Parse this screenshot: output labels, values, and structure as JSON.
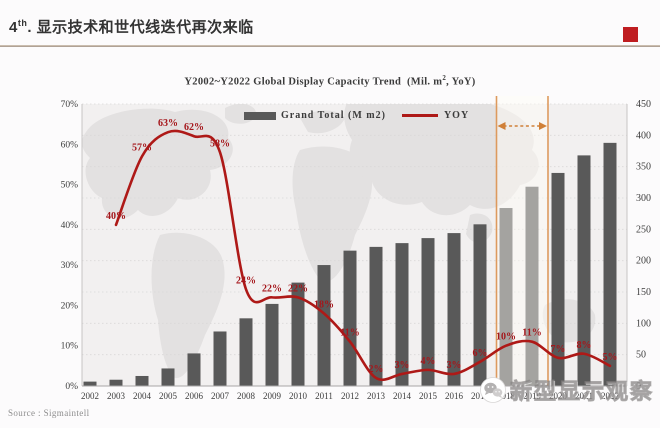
{
  "slide": {
    "title": {
      "number": "4",
      "superscript": "th",
      "text": ". 显示技术和世代线迭代再次来临"
    }
  },
  "chart": {
    "title": {
      "main": "Y2002~Y2022 Global Display Capacity Trend",
      "unit_pre": "(Mil. m",
      "unit_sup": "2",
      "unit_post": ", YoY)"
    },
    "legend": {
      "bar_label": "Grand Total (M m2)",
      "line_label": "YOY"
    }
  },
  "chart_data": {
    "type": "bar+line",
    "title": "Y2002~Y2022 Global Display Capacity Trend (Mil. m2, YoY)",
    "categories": [
      "2002",
      "2003",
      "2004",
      "2005",
      "2006",
      "2007",
      "2008",
      "2009",
      "2010",
      "2011",
      "2012",
      "2013",
      "2014",
      "2015",
      "2016",
      "2017",
      "2018",
      "2019",
      "2020",
      "2021",
      "2022"
    ],
    "series": [
      {
        "name": "Grand Total (M m2)",
        "type": "bar",
        "axis": "right",
        "color": "#595959",
        "values": [
          7,
          10,
          16,
          28,
          52,
          87,
          108,
          131,
          165,
          193,
          216,
          222,
          228,
          236,
          244,
          258,
          284,
          318,
          340,
          368,
          388
        ]
      },
      {
        "name": "YOY",
        "type": "line",
        "axis": "left",
        "color": "#ae1917",
        "values": [
          null,
          40,
          57,
          63,
          62,
          58,
          24,
          22,
          22,
          18,
          11,
          2,
          3,
          4,
          3,
          6,
          10,
          11,
          7,
          8,
          5
        ]
      }
    ],
    "left_axis": {
      "min": 0,
      "max": 70,
      "unit": "%",
      "ticks": [
        "0%",
        "10%",
        "20%",
        "30%",
        "40%",
        "50%",
        "60%",
        "70%"
      ]
    },
    "right_axis": {
      "min": 0,
      "max": 450,
      "ticks": [
        "0",
        "50",
        "100",
        "150",
        "200",
        "250",
        "300",
        "350",
        "400",
        "450"
      ]
    },
    "grid": "dotted-horizontal",
    "legend_position": "top-center",
    "highlight": {
      "type": "range-annotation",
      "style": "vertical-lines-with-dashed-double-arrow",
      "color": "#dd9a5e",
      "from": "2018",
      "to": "2019"
    }
  },
  "footer": {
    "source": "Source : Sigmaintell"
  },
  "watermark": {
    "text": "新型显示观察",
    "icon": "wechat-icon"
  }
}
